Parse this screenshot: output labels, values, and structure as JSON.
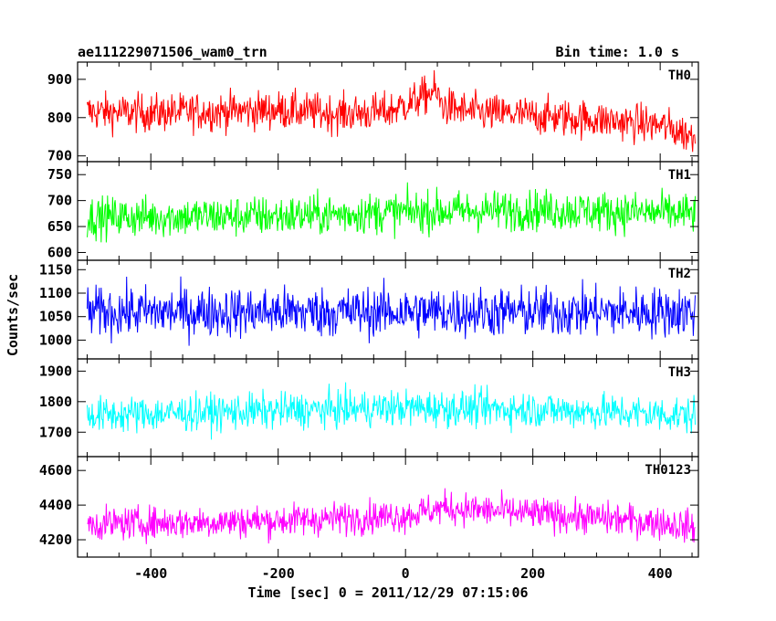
{
  "chart_data": {
    "type": "line",
    "title_left": "ae111229071506_wam0_trn",
    "title_right": "Bin time: 1.0 s",
    "xlabel": "Time [sec] 0 = 2011/12/29 07:15:06",
    "ylabel": "Counts/sec",
    "xlim": [
      -515,
      460
    ],
    "xticks": [
      -400,
      -200,
      0,
      200,
      400
    ],
    "x_range": [
      -500,
      455
    ],
    "bin_time_s": 1.0,
    "series": [
      {
        "name": "TH0",
        "color": "#ff0000",
        "ylim": [
          685,
          945
        ],
        "yticks": [
          700,
          800,
          900
        ],
        "profile": [
          [
            -500,
            815
          ],
          [
            -400,
            812
          ],
          [
            -200,
            820
          ],
          [
            -100,
            810
          ],
          [
            -30,
            815
          ],
          [
            10,
            840
          ],
          [
            45,
            870
          ],
          [
            60,
            830
          ],
          [
            100,
            815
          ],
          [
            200,
            805
          ],
          [
            300,
            795
          ],
          [
            400,
            780
          ],
          [
            455,
            750
          ]
        ],
        "spread": 42
      },
      {
        "name": "TH1",
        "color": "#00ff00",
        "ylim": [
          585,
          775
        ],
        "yticks": [
          600,
          650,
          700,
          750
        ],
        "profile": [
          [
            -500,
            668
          ],
          [
            -200,
            670
          ],
          [
            0,
            678
          ],
          [
            200,
            682
          ],
          [
            455,
            675
          ]
        ],
        "spread": 33
      },
      {
        "name": "TH2",
        "color": "#0000ff",
        "ylim": [
          960,
          1170
        ],
        "yticks": [
          1000,
          1050,
          1100,
          1150
        ],
        "profile": [
          [
            -500,
            1060
          ],
          [
            455,
            1060
          ]
        ],
        "spread": 45
      },
      {
        "name": "TH3",
        "color": "#00ffff",
        "ylim": [
          1620,
          1940
        ],
        "yticks": [
          1700,
          1800,
          1900
        ],
        "profile": [
          [
            -500,
            1755
          ],
          [
            -200,
            1770
          ],
          [
            0,
            1780
          ],
          [
            200,
            1775
          ],
          [
            455,
            1755
          ]
        ],
        "spread": 50
      },
      {
        "name": "TH0123",
        "color": "#ff00ff",
        "ylim": [
          4100,
          4680
        ],
        "yticks": [
          4200,
          4400,
          4600
        ],
        "profile": [
          [
            -500,
            4290
          ],
          [
            -200,
            4310
          ],
          [
            0,
            4340
          ],
          [
            60,
            4385
          ],
          [
            200,
            4350
          ],
          [
            400,
            4300
          ],
          [
            455,
            4270
          ]
        ],
        "spread": 80
      }
    ]
  }
}
